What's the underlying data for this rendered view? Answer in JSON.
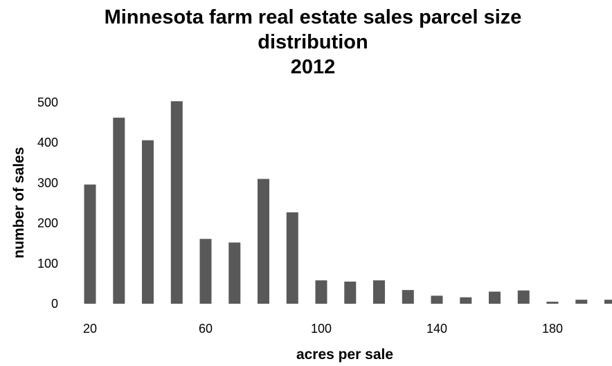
{
  "chart_data": {
    "type": "bar",
    "title_lines": [
      "Minnesota farm real estate sales parcel size",
      "distribution",
      "2012"
    ],
    "xlabel": "acres per sale",
    "ylabel": "number of sales",
    "x": [
      20,
      30,
      40,
      50,
      60,
      70,
      80,
      90,
      100,
      110,
      120,
      130,
      140,
      150,
      160,
      170,
      180,
      190,
      200
    ],
    "values": [
      296,
      462,
      406,
      503,
      161,
      152,
      310,
      227,
      58,
      55,
      58,
      34,
      20,
      16,
      30,
      33,
      5,
      10,
      10
    ],
    "x_ticks": [
      20,
      60,
      100,
      140,
      180
    ],
    "y_ticks": [
      0,
      100,
      200,
      300,
      400,
      500
    ],
    "ylim": [
      0,
      500
    ],
    "grid": false,
    "legend": "none",
    "bar_color": "#595959"
  }
}
